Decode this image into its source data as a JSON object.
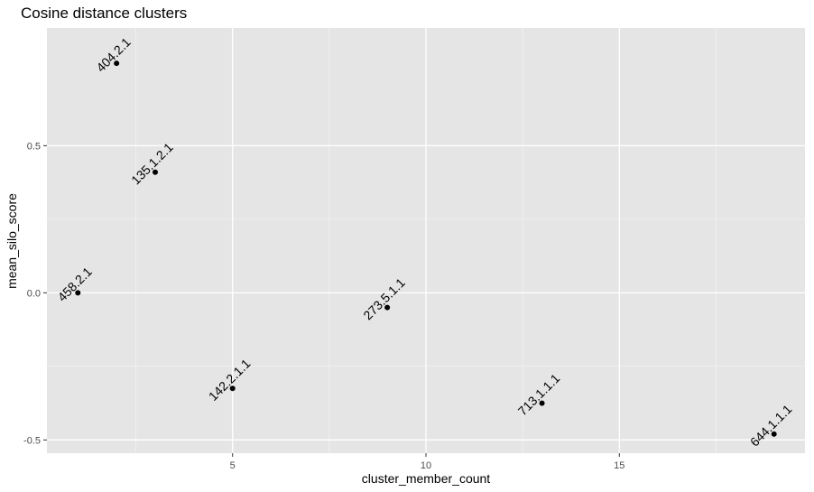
{
  "chart_data": {
    "type": "scatter",
    "title": "Cosine distance clusters",
    "xlabel": "cluster_member_count",
    "ylabel": "mean_silo_score",
    "xlim": [
      0.2,
      19.8
    ],
    "ylim": [
      -0.545,
      0.9
    ],
    "x_ticks": [
      5,
      10,
      15
    ],
    "y_ticks": [
      -0.5,
      0.0,
      0.5
    ],
    "x_tick_labels": [
      "5",
      "10",
      "15"
    ],
    "y_tick_labels": [
      "-0.5",
      "0.0",
      "0.5"
    ],
    "grid": true,
    "legend": "none",
    "colors": {
      "panel": "#e5e5e5",
      "grid_major": "#ffffff",
      "grid_minor": "#f2f2f2",
      "point": "#000000",
      "tick": "#333333"
    },
    "points": [
      {
        "label": "404.2.1",
        "x": 2,
        "y": 0.78
      },
      {
        "label": "135.1.2.1",
        "x": 3,
        "y": 0.41
      },
      {
        "label": "458.2.1",
        "x": 1,
        "y": 0.0
      },
      {
        "label": "273.5.1.1",
        "x": 9,
        "y": -0.05
      },
      {
        "label": "142.2.1.1",
        "x": 5,
        "y": -0.325
      },
      {
        "label": "713.1.1.1",
        "x": 13,
        "y": -0.375
      },
      {
        "label": "644.1.1.1",
        "x": 19,
        "y": -0.48
      }
    ]
  }
}
